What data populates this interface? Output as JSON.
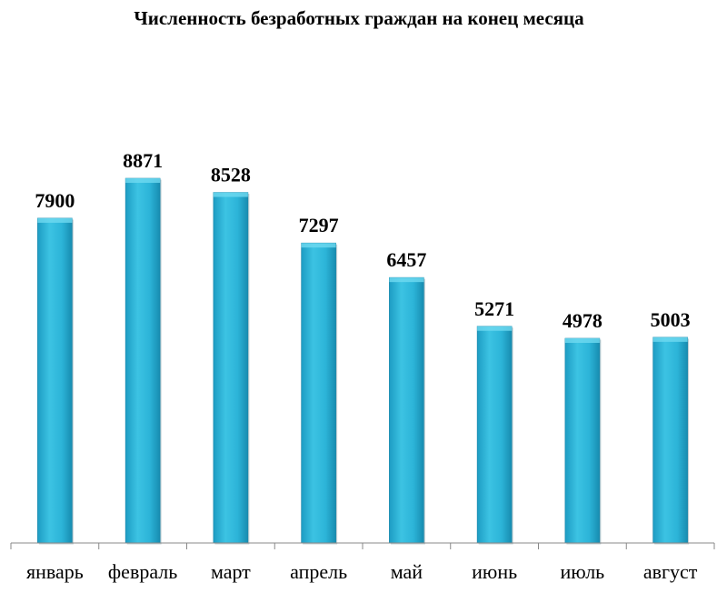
{
  "chart_data": {
    "type": "bar",
    "title": "Численность безработных граждан на конец месяца",
    "categories": [
      "январь",
      "февраль",
      "март",
      "апрель",
      "май",
      "июнь",
      "июль",
      "август"
    ],
    "series": [
      {
        "values": [
          7900,
          8871,
          8528,
          7297,
          6457,
          5271,
          4978,
          5003
        ]
      }
    ],
    "data_labels": [
      "7900",
      "8871",
      "8528",
      "7297",
      "6457",
      "5271",
      "4978",
      "5003"
    ],
    "ylim": [
      0,
      10000
    ],
    "grid": false,
    "legend": "none",
    "colors": {
      "bar": "#29b0d4",
      "bar_light": "#5cd0ea",
      "bar_dark": "#1a8fb2"
    }
  }
}
